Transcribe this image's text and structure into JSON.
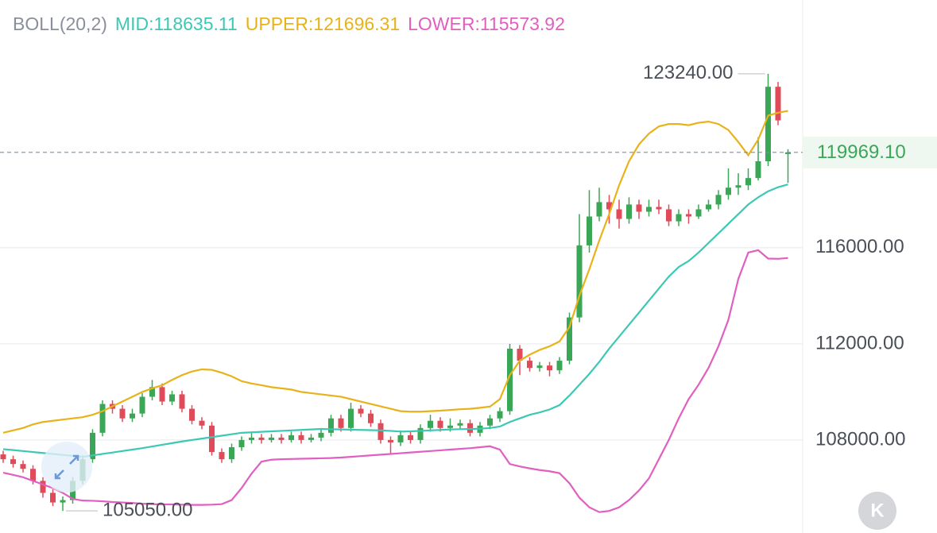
{
  "chart_data": {
    "type": "candlestick",
    "indicator": "BOLL(20,2)",
    "ylim": [
      104130,
      126310
    ],
    "yticks": [
      {
        "value": 108000,
        "label": "108000.00"
      },
      {
        "value": 112000,
        "label": "112000.00"
      },
      {
        "value": 116000,
        "label": "116000.00"
      }
    ],
    "grid": true,
    "up_color": "#3aa757",
    "down_color": "#e04b5a",
    "open": [
      107400,
      107200,
      107000,
      106800,
      106300,
      105800,
      105400,
      105500,
      106300,
      107200,
      108300,
      109500,
      109300,
      108900,
      109100,
      109800,
      110200,
      109600,
      109900,
      109300,
      108800,
      108600,
      107500,
      107200,
      107700,
      108000,
      108100,
      108000,
      108100,
      108000,
      108200,
      108000,
      108100,
      108300,
      108900,
      108500,
      109300,
      109100,
      108700,
      108000,
      107900,
      108200,
      108000,
      108500,
      108800,
      108500,
      108600,
      108700,
      108300,
      108600,
      108900,
      109200,
      111800,
      111300,
      111000,
      111100,
      110900,
      111300,
      113100,
      116100,
      117300,
      117900,
      117600,
      117200,
      117800,
      117500,
      117700,
      117600,
      117100,
      117400,
      117300,
      117600,
      117800,
      118200,
      118500,
      118600,
      118900,
      119600,
      122700,
      119900
    ],
    "high": [
      107550,
      107350,
      107150,
      106950,
      106450,
      105950,
      105650,
      106450,
      107350,
      108450,
      109650,
      109650,
      109450,
      109300,
      109950,
      110500,
      110350,
      110050,
      110050,
      109450,
      108950,
      108750,
      107650,
      107850,
      108150,
      108300,
      108250,
      108250,
      108250,
      108350,
      108350,
      108250,
      108450,
      109050,
      109050,
      109550,
      109450,
      109250,
      108850,
      108150,
      108400,
      108350,
      108650,
      109050,
      108950,
      108900,
      108850,
      108850,
      108750,
      109050,
      109350,
      112000,
      111950,
      111450,
      111250,
      111250,
      111450,
      113300,
      117400,
      118400,
      118500,
      118200,
      118000,
      118100,
      118000,
      118000,
      118000,
      117800,
      117600,
      117600,
      117800,
      118000,
      118400,
      119300,
      119100,
      119300,
      120600,
      123240,
      122900,
      120100
    ],
    "low": [
      107050,
      106850,
      106650,
      106150,
      105600,
      105250,
      105050,
      105350,
      106150,
      107050,
      108150,
      109100,
      108750,
      108750,
      108950,
      109650,
      109450,
      109450,
      109150,
      108650,
      108450,
      107350,
      107050,
      107050,
      107550,
      107850,
      107850,
      107900,
      107850,
      107900,
      107850,
      107900,
      107950,
      108150,
      108350,
      108350,
      108950,
      108550,
      107850,
      107450,
      107750,
      107850,
      107850,
      108350,
      108350,
      108350,
      108450,
      108150,
      108150,
      108450,
      108750,
      109050,
      110700,
      110850,
      110850,
      110650,
      110750,
      111150,
      112900,
      115800,
      117100,
      117000,
      116800,
      117000,
      117200,
      117300,
      117400,
      116900,
      116900,
      117000,
      117200,
      117500,
      117600,
      118000,
      118200,
      118400,
      118800,
      119400,
      121100,
      118700
    ],
    "close": [
      107200,
      107000,
      106800,
      106300,
      105800,
      105400,
      105500,
      106300,
      107200,
      108300,
      109500,
      109300,
      108900,
      109100,
      109800,
      110200,
      109600,
      109900,
      109300,
      108800,
      108600,
      107500,
      107200,
      107700,
      108000,
      108100,
      108000,
      108100,
      108000,
      108200,
      108000,
      108100,
      108300,
      108900,
      108500,
      109300,
      109100,
      108700,
      108000,
      107900,
      108200,
      108000,
      108500,
      108800,
      108500,
      108600,
      108700,
      108300,
      108600,
      108900,
      109200,
      111800,
      111300,
      111000,
      111100,
      110900,
      111300,
      113100,
      116100,
      117300,
      117900,
      117600,
      117200,
      117800,
      117500,
      117700,
      117600,
      117100,
      117400,
      117300,
      117600,
      117800,
      118200,
      118500,
      118600,
      118900,
      119600,
      122700,
      121300,
      119969.1
    ],
    "series": [
      {
        "name": "MID:118635.11",
        "color": "#3cc8b4",
        "values": [
          107620,
          107580,
          107540,
          107500,
          107460,
          107420,
          107380,
          107340,
          107300,
          107360,
          107420,
          107480,
          107540,
          107600,
          107660,
          107730,
          107800,
          107870,
          107940,
          108000,
          108060,
          108120,
          108180,
          108240,
          108300,
          108320,
          108340,
          108360,
          108380,
          108400,
          108420,
          108440,
          108460,
          108450,
          108440,
          108430,
          108420,
          108410,
          108400,
          108380,
          108350,
          108360,
          108380,
          108400,
          108420,
          108440,
          108450,
          108460,
          108470,
          108500,
          108560,
          108750,
          108900,
          109050,
          109150,
          109270,
          109450,
          109850,
          110300,
          110750,
          111250,
          111800,
          112300,
          112800,
          113300,
          113800,
          114300,
          114800,
          115200,
          115450,
          115800,
          116200,
          116600,
          117000,
          117400,
          117800,
          118100,
          118350,
          118520,
          118635.11
        ]
      },
      {
        "name": "UPPER:121696.31",
        "color": "#e8b21a",
        "values": [
          108300,
          108400,
          108500,
          108650,
          108750,
          108800,
          108850,
          108900,
          108950,
          109050,
          109200,
          109400,
          109600,
          109800,
          110000,
          110150,
          110280,
          110500,
          110700,
          110850,
          110940,
          110920,
          110800,
          110650,
          110450,
          110350,
          110280,
          110200,
          110150,
          110100,
          110000,
          109950,
          109900,
          109850,
          109800,
          109700,
          109600,
          109500,
          109400,
          109300,
          109200,
          109180,
          109180,
          109200,
          109220,
          109250,
          109280,
          109300,
          109340,
          109390,
          109700,
          110700,
          111300,
          111550,
          111750,
          111900,
          112100,
          112700,
          114000,
          115100,
          116300,
          117400,
          118600,
          119600,
          120300,
          120750,
          121050,
          121150,
          121150,
          121100,
          121200,
          121250,
          121150,
          120900,
          120400,
          119850,
          120500,
          121500,
          121620,
          121696.31
        ]
      },
      {
        "name": "LOWER:115573.92",
        "color": "#e05fc0",
        "values": [
          106640,
          106550,
          106450,
          106300,
          106150,
          106000,
          105800,
          105550,
          105480,
          105470,
          105450,
          105420,
          105400,
          105380,
          105350,
          105330,
          105320,
          105320,
          105310,
          105300,
          105300,
          105310,
          105330,
          105500,
          106000,
          106600,
          107100,
          107180,
          107200,
          107210,
          107220,
          107230,
          107240,
          107250,
          107270,
          107300,
          107330,
          107360,
          107390,
          107420,
          107450,
          107480,
          107510,
          107540,
          107570,
          107600,
          107630,
          107660,
          107700,
          107740,
          107600,
          107000,
          106900,
          106820,
          106750,
          106700,
          106620,
          106200,
          105600,
          105200,
          105000,
          105050,
          105200,
          105500,
          105900,
          106400,
          107200,
          108000,
          108900,
          109700,
          110300,
          111000,
          111900,
          113000,
          114700,
          115800,
          115900,
          115550,
          115540,
          115573.92
        ]
      }
    ],
    "max_label": {
      "value": 123240,
      "label": "123240.00"
    },
    "min_label": {
      "value": 105050,
      "label": "105050.00"
    },
    "current_price": {
      "value": 119969.1,
      "label": "119969.10"
    },
    "button_label": "K"
  }
}
